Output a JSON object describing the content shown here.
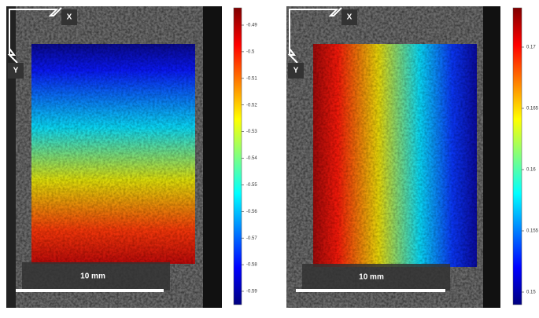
{
  "panels": [
    {
      "x_label": "X",
      "y_label": "Y",
      "scale_label": "10 mm",
      "colorbar_ticks": [
        "-0.49",
        "-0.5",
        "-0.51",
        "-0.52",
        "-0.53",
        "-0.54",
        "-0.55",
        "-0.56",
        "-0.57",
        "-0.58",
        "-0.59"
      ]
    },
    {
      "x_label": "X",
      "y_label": "Y",
      "scale_label": "10 mm",
      "colorbar_ticks": [
        "0.17",
        "0.165",
        "0.16",
        "0.155",
        "0.15"
      ]
    }
  ]
}
